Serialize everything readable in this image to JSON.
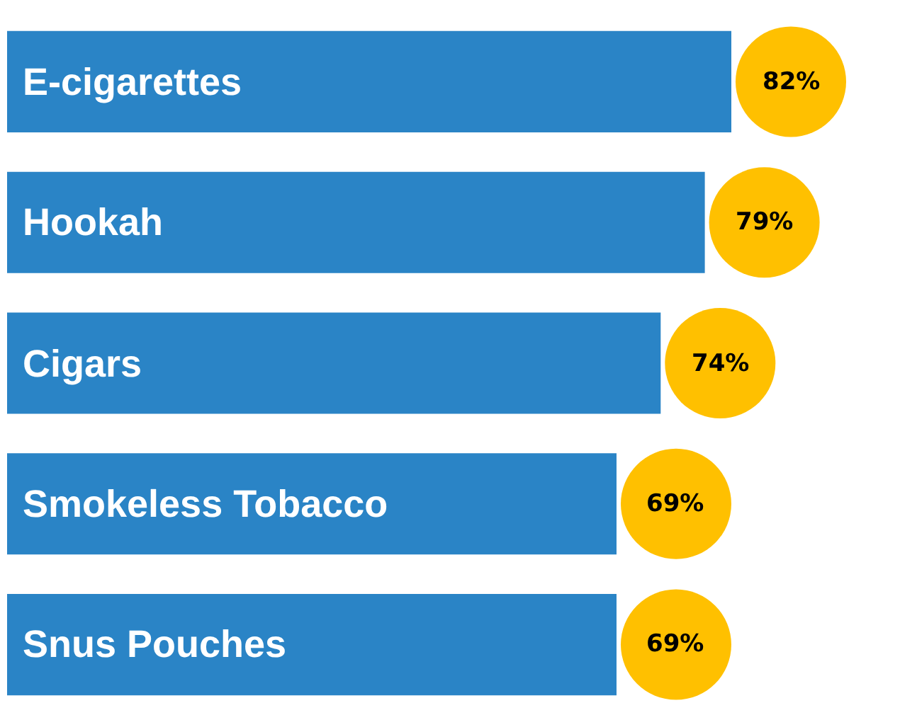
{
  "chart_data": {
    "type": "bar",
    "orientation": "horizontal",
    "categories": [
      "E-cigarettes",
      "Hookah",
      "Cigars",
      "Smokeless Tobacco",
      "Snus Pouches"
    ],
    "series": [
      {
        "color": "#2a84c6",
        "values": [
          82,
          79,
          74,
          69,
          69
        ],
        "value_labels": [
          "82%",
          "79%",
          "74%",
          "69%",
          "69%"
        ]
      }
    ]
  }
}
